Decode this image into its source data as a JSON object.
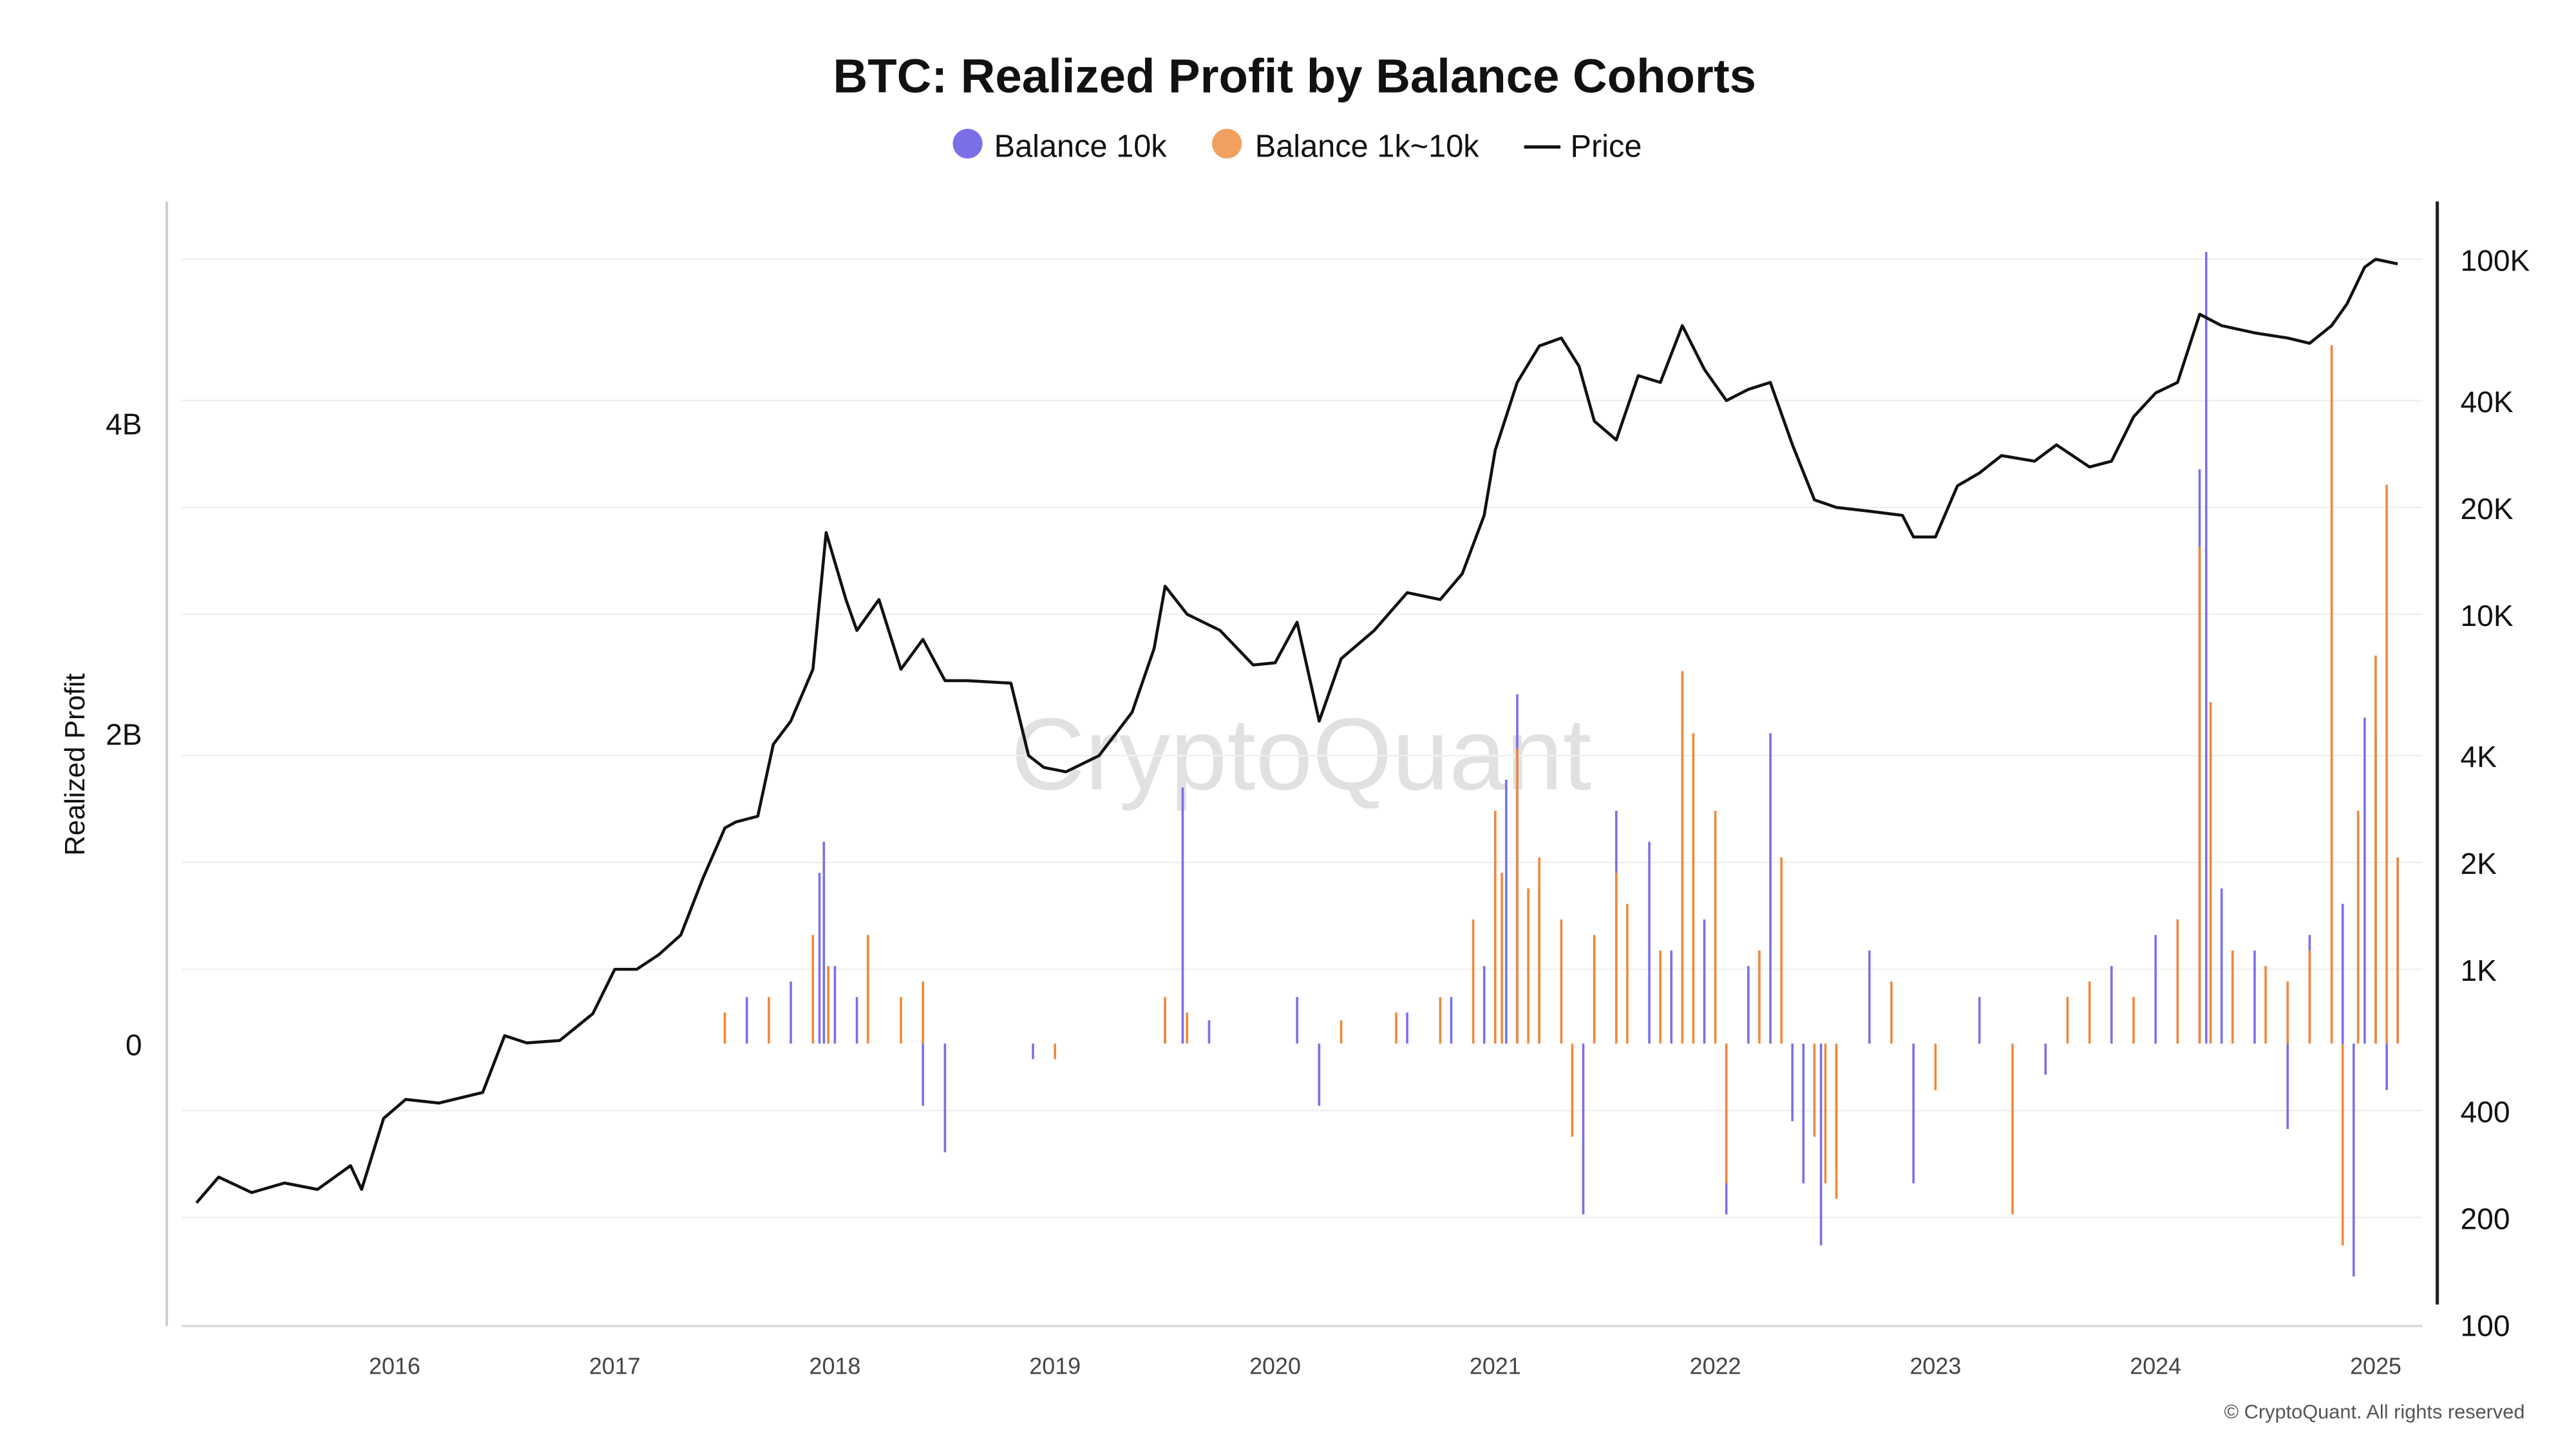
{
  "chart_data": {
    "type": "bar+line",
    "title": "BTC: Realized Profit by Balance Cohorts",
    "ylabel": "Realized Profit",
    "ylabel_right": "",
    "legend_position": "top-center",
    "grid": true,
    "x_ticks": [
      "2016",
      "2017",
      "2018",
      "2019",
      "2020",
      "2021",
      "2022",
      "2023",
      "2024",
      "2025"
    ],
    "xlim": [
      2015.1,
      2025.2
    ],
    "y_left": {
      "ticks": [
        {
          "v": 0,
          "label": "0"
        },
        {
          "v": 2,
          "label": "2B"
        },
        {
          "v": 4,
          "label": "4B"
        }
      ],
      "unit": "B",
      "ylim": [
        -1.82,
        5.43
      ]
    },
    "y_right": {
      "scale": "log",
      "ticks": [
        {
          "v": 100,
          "label": "100"
        },
        {
          "v": 200,
          "label": "200"
        },
        {
          "v": 400,
          "label": "400"
        },
        {
          "v": 1000,
          "label": "1K"
        },
        {
          "v": 2000,
          "label": "2K"
        },
        {
          "v": 4000,
          "label": "4K"
        },
        {
          "v": 10000,
          "label": "10K"
        },
        {
          "v": 20000,
          "label": "20K"
        },
        {
          "v": 40000,
          "label": "40K"
        },
        {
          "v": 100000,
          "label": "100K"
        }
      ],
      "ylim": [
        100,
        100000
      ]
    },
    "series": [
      {
        "name": "Balance 10k",
        "type": "bar",
        "color": "#7b6fe8",
        "axis": "left",
        "x": [
          2017.6,
          2017.8,
          2017.93,
          2017.95,
          2018.0,
          2018.1,
          2018.4,
          2018.5,
          2018.9,
          2019.5,
          2019.58,
          2019.7,
          2020.1,
          2020.2,
          2020.6,
          2020.8,
          2020.95,
          2021.05,
          2021.1,
          2021.2,
          2021.4,
          2021.55,
          2021.7,
          2021.8,
          2021.95,
          2022.05,
          2022.15,
          2022.25,
          2022.35,
          2022.4,
          2022.48,
          2022.55,
          2022.7,
          2022.9,
          2023.2,
          2023.5,
          2023.8,
          2024.0,
          2024.1,
          2024.2,
          2024.23,
          2024.3,
          2024.45,
          2024.6,
          2024.7,
          2024.85,
          2024.9,
          2024.95,
          2025.0,
          2025.05,
          2025.1
        ],
        "values": [
          0.3,
          0.4,
          1.1,
          1.3,
          0.5,
          0.3,
          -0.4,
          -0.7,
          -0.1,
          0.25,
          1.65,
          0.15,
          0.3,
          -0.4,
          0.2,
          0.3,
          0.5,
          1.7,
          2.25,
          1.0,
          -1.1,
          1.5,
          1.3,
          0.6,
          0.8,
          -1.1,
          0.5,
          2.0,
          -0.5,
          -0.9,
          -1.3,
          -0.8,
          0.6,
          -0.9,
          0.3,
          -0.2,
          0.5,
          0.7,
          0.8,
          3.7,
          5.1,
          1.0,
          0.6,
          -0.55,
          0.7,
          0.9,
          -1.5,
          2.1,
          2.0,
          -0.3,
          1.2
        ]
      },
      {
        "name": "Balance 1k~10k",
        "type": "bar",
        "color": "#f0883a",
        "axis": "left",
        "x": [
          2017.5,
          2017.7,
          2017.9,
          2017.97,
          2018.15,
          2018.3,
          2018.4,
          2019.0,
          2019.5,
          2019.6,
          2020.3,
          2020.55,
          2020.75,
          2020.9,
          2021.0,
          2021.03,
          2021.1,
          2021.15,
          2021.2,
          2021.3,
          2021.35,
          2021.45,
          2021.55,
          2021.6,
          2021.75,
          2021.85,
          2021.9,
          2022.0,
          2022.05,
          2022.2,
          2022.3,
          2022.45,
          2022.5,
          2022.55,
          2022.8,
          2023.0,
          2023.35,
          2023.6,
          2023.7,
          2023.9,
          2024.1,
          2024.2,
          2024.25,
          2024.35,
          2024.5,
          2024.6,
          2024.7,
          2024.8,
          2024.85,
          2024.92,
          2025.0,
          2025.05,
          2025.1
        ],
        "values": [
          0.2,
          0.3,
          0.7,
          0.5,
          0.7,
          0.3,
          0.4,
          -0.1,
          0.3,
          0.2,
          0.15,
          0.2,
          0.3,
          0.8,
          1.5,
          1.1,
          1.9,
          1.0,
          1.2,
          0.8,
          -0.6,
          0.7,
          1.1,
          0.9,
          0.6,
          2.4,
          2.0,
          1.5,
          -0.9,
          0.6,
          1.2,
          -0.6,
          -0.9,
          -1.0,
          0.4,
          -0.3,
          -1.1,
          0.3,
          0.4,
          0.3,
          0.8,
          3.2,
          2.2,
          0.6,
          0.5,
          0.4,
          0.6,
          4.5,
          -1.3,
          1.5,
          2.5,
          3.6,
          1.2
        ]
      },
      {
        "name": "Price",
        "type": "line",
        "color": "#111111",
        "axis": "right",
        "x": [
          2015.1,
          2015.2,
          2015.35,
          2015.5,
          2015.65,
          2015.8,
          2015.85,
          2015.95,
          2016.05,
          2016.2,
          2016.4,
          2016.5,
          2016.6,
          2016.75,
          2016.9,
          2017.0,
          2017.1,
          2017.2,
          2017.3,
          2017.4,
          2017.5,
          2017.55,
          2017.65,
          2017.72,
          2017.8,
          2017.9,
          2017.96,
          2018.05,
          2018.1,
          2018.2,
          2018.3,
          2018.4,
          2018.5,
          2018.6,
          2018.8,
          2018.88,
          2018.95,
          2019.05,
          2019.2,
          2019.35,
          2019.45,
          2019.5,
          2019.6,
          2019.75,
          2019.9,
          2020.0,
          2020.1,
          2020.2,
          2020.3,
          2020.45,
          2020.6,
          2020.75,
          2020.85,
          2020.95,
          2021.0,
          2021.1,
          2021.2,
          2021.3,
          2021.38,
          2021.45,
          2021.55,
          2021.65,
          2021.75,
          2021.85,
          2021.95,
          2022.05,
          2022.15,
          2022.25,
          2022.35,
          2022.45,
          2022.55,
          2022.7,
          2022.85,
          2022.9,
          2023.0,
          2023.1,
          2023.2,
          2023.3,
          2023.45,
          2023.55,
          2023.7,
          2023.8,
          2023.9,
          2024.0,
          2024.1,
          2024.2,
          2024.3,
          2024.45,
          2024.6,
          2024.7,
          2024.8,
          2024.87,
          2024.95,
          2025.0,
          2025.1
        ],
        "values": [
          220,
          260,
          235,
          250,
          240,
          280,
          240,
          380,
          430,
          420,
          450,
          650,
          620,
          630,
          750,
          1000,
          1000,
          1100,
          1250,
          1800,
          2500,
          2600,
          2700,
          4300,
          5000,
          7000,
          17000,
          11000,
          9000,
          11000,
          7000,
          8500,
          6500,
          6500,
          6400,
          4000,
          3700,
          3600,
          4000,
          5300,
          8000,
          12000,
          10000,
          9000,
          7200,
          7300,
          9500,
          5000,
          7500,
          9000,
          11500,
          11000,
          13000,
          19000,
          29000,
          45000,
          57000,
          60000,
          50000,
          35000,
          31000,
          47000,
          45000,
          65000,
          49000,
          40000,
          43000,
          45000,
          30000,
          21000,
          20000,
          19500,
          19000,
          16500,
          16500,
          23000,
          25000,
          28000,
          27000,
          30000,
          26000,
          27000,
          36000,
          42000,
          45000,
          70000,
          65000,
          62000,
          60000,
          58000,
          65000,
          75000,
          95000,
          100000,
          97000
        ]
      }
    ]
  },
  "watermark": "CryptoQuant",
  "copyright": "© CryptoQuant. All rights reserved"
}
